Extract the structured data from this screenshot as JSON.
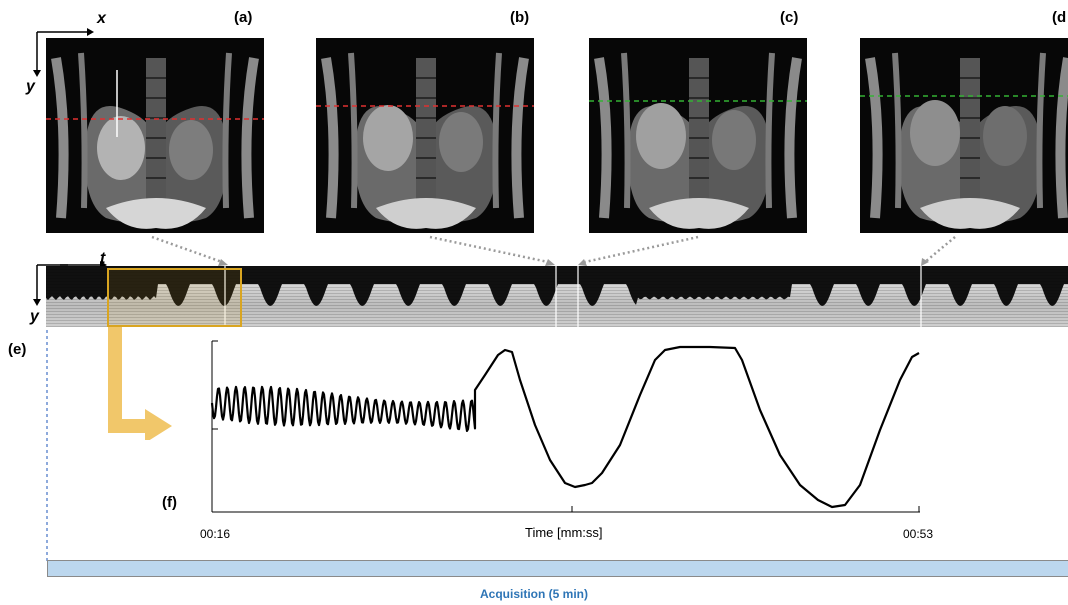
{
  "panels": {
    "a": "(a)",
    "b": "(b)",
    "c": "(c)",
    "d": "(d",
    "e": "(e)",
    "f": "(f)"
  },
  "axes": {
    "x": "x",
    "y_top": "y",
    "t": "t",
    "y_bottom": "y"
  },
  "slice_line_colors": [
    "#e03030",
    "#e03030",
    "#34b234",
    "#34b234"
  ],
  "highlight_color": "#d9a521",
  "signal_plot": {
    "xlabel": "Time [mm:ss]",
    "tick_start": "00:16",
    "tick_end": "00:53"
  },
  "acquisition": {
    "label": "Acquisition (5 min)",
    "color": "#bcd7ee",
    "text_color": "#2e75b6"
  }
}
